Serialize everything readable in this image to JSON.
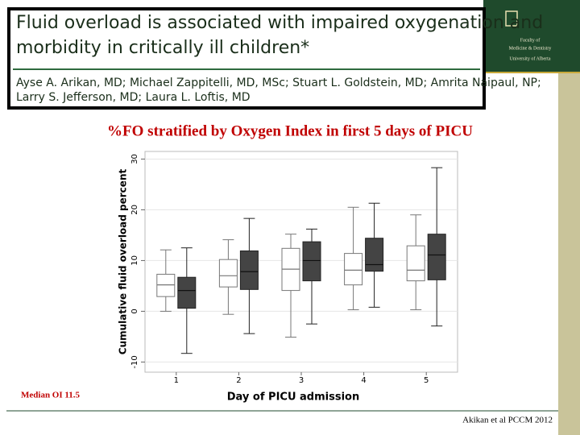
{
  "header": {
    "title_line1": "Fluid overload is associated with impaired oxygenation and",
    "title_line2": "morbidity in critically ill children*",
    "authors_line1": "Ayse A. Arikan, MD; Michael Zappitelli, MD, MSc; Stuart L. Goldstein, MD; Amrita Naipaul, NP;",
    "authors_line2": "Larry S. Jefferson, MD; Laura L. Loftis, MD"
  },
  "logo": {
    "line1": "Faculty of",
    "line2": "Medicine & Dentistry",
    "line3": "University of Alberta"
  },
  "citation": "Akikan et al PCCM 2012",
  "chart_data": {
    "type": "box",
    "title": "%FO stratified by Oxygen Index in first 5 days of PICU",
    "annotation": "Median OI 11.5",
    "xlabel": "Day of PICU admission",
    "ylabel": "Cumulative fluid overload percent",
    "categories": [
      "1",
      "2",
      "3",
      "4",
      "5"
    ],
    "ylim": [
      -12,
      31.5
    ],
    "yticks": [
      -10,
      0,
      10,
      20,
      30
    ],
    "grid": true,
    "series": [
      {
        "color": "#ffffff",
        "values": [
          {
            "min": 0,
            "q1": 2.9,
            "median": 5.2,
            "q3": 7.3,
            "max": 12.1
          },
          {
            "min": -0.6,
            "q1": 4.8,
            "median": 7.0,
            "q3": 10.2,
            "max": 14.1
          },
          {
            "min": -5.1,
            "q1": 4.1,
            "median": 8.3,
            "q3": 12.4,
            "max": 15.2
          },
          {
            "min": 0.3,
            "q1": 5.2,
            "median": 8.1,
            "q3": 11.4,
            "max": 20.5
          },
          {
            "min": 0.3,
            "q1": 6.0,
            "median": 8.1,
            "q3": 12.9,
            "max": 19.0
          }
        ]
      },
      {
        "color": "#444444",
        "values": [
          {
            "min": -8.3,
            "q1": 0.6,
            "median": 4.1,
            "q3": 6.7,
            "max": 12.5
          },
          {
            "min": -4.4,
            "q1": 4.3,
            "median": 7.8,
            "q3": 11.9,
            "max": 18.3
          },
          {
            "min": -2.5,
            "q1": 6.0,
            "median": 10.0,
            "q3": 13.7,
            "max": 16.2
          },
          {
            "min": 0.8,
            "q1": 7.9,
            "median": 9.2,
            "q3": 14.4,
            "max": 21.3
          },
          {
            "min": -2.9,
            "q1": 6.2,
            "median": 11.1,
            "q3": 15.2,
            "max": 28.3
          }
        ]
      }
    ]
  }
}
